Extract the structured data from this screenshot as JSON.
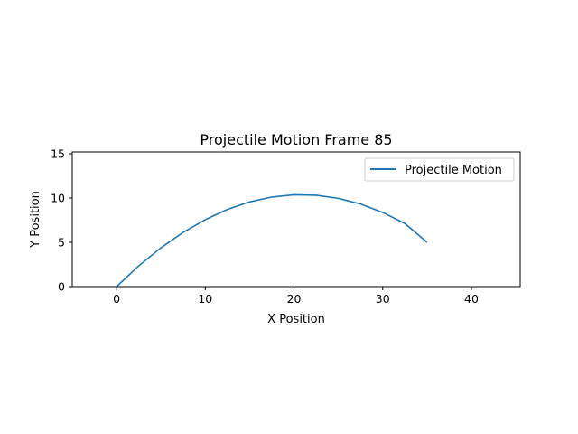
{
  "chart_data": {
    "type": "line",
    "title": "Projectile Motion Frame 85",
    "xlabel": "X Position",
    "ylabel": "Y Position",
    "xlim": [
      -5,
      45.5
    ],
    "ylim": [
      0,
      15.2
    ],
    "x_ticks": [
      0,
      10,
      20,
      30,
      40
    ],
    "y_ticks": [
      0,
      5,
      10,
      15
    ],
    "grid": false,
    "legend_position": "top-right",
    "colors": {
      "series": "#1f77b4",
      "axes": "#000000",
      "background": "#ffffff"
    },
    "series": [
      {
        "name": "Projectile Motion",
        "x": [
          0,
          2.5,
          5,
          7.5,
          10,
          12.5,
          15,
          17.5,
          20,
          22.5,
          25,
          27.5,
          30,
          32.5,
          35
        ],
        "y": [
          0,
          2.34,
          4.38,
          6.12,
          7.56,
          8.71,
          9.56,
          10.11,
          10.36,
          10.31,
          9.96,
          9.32,
          8.37,
          7.13,
          5.0
        ]
      }
    ]
  }
}
